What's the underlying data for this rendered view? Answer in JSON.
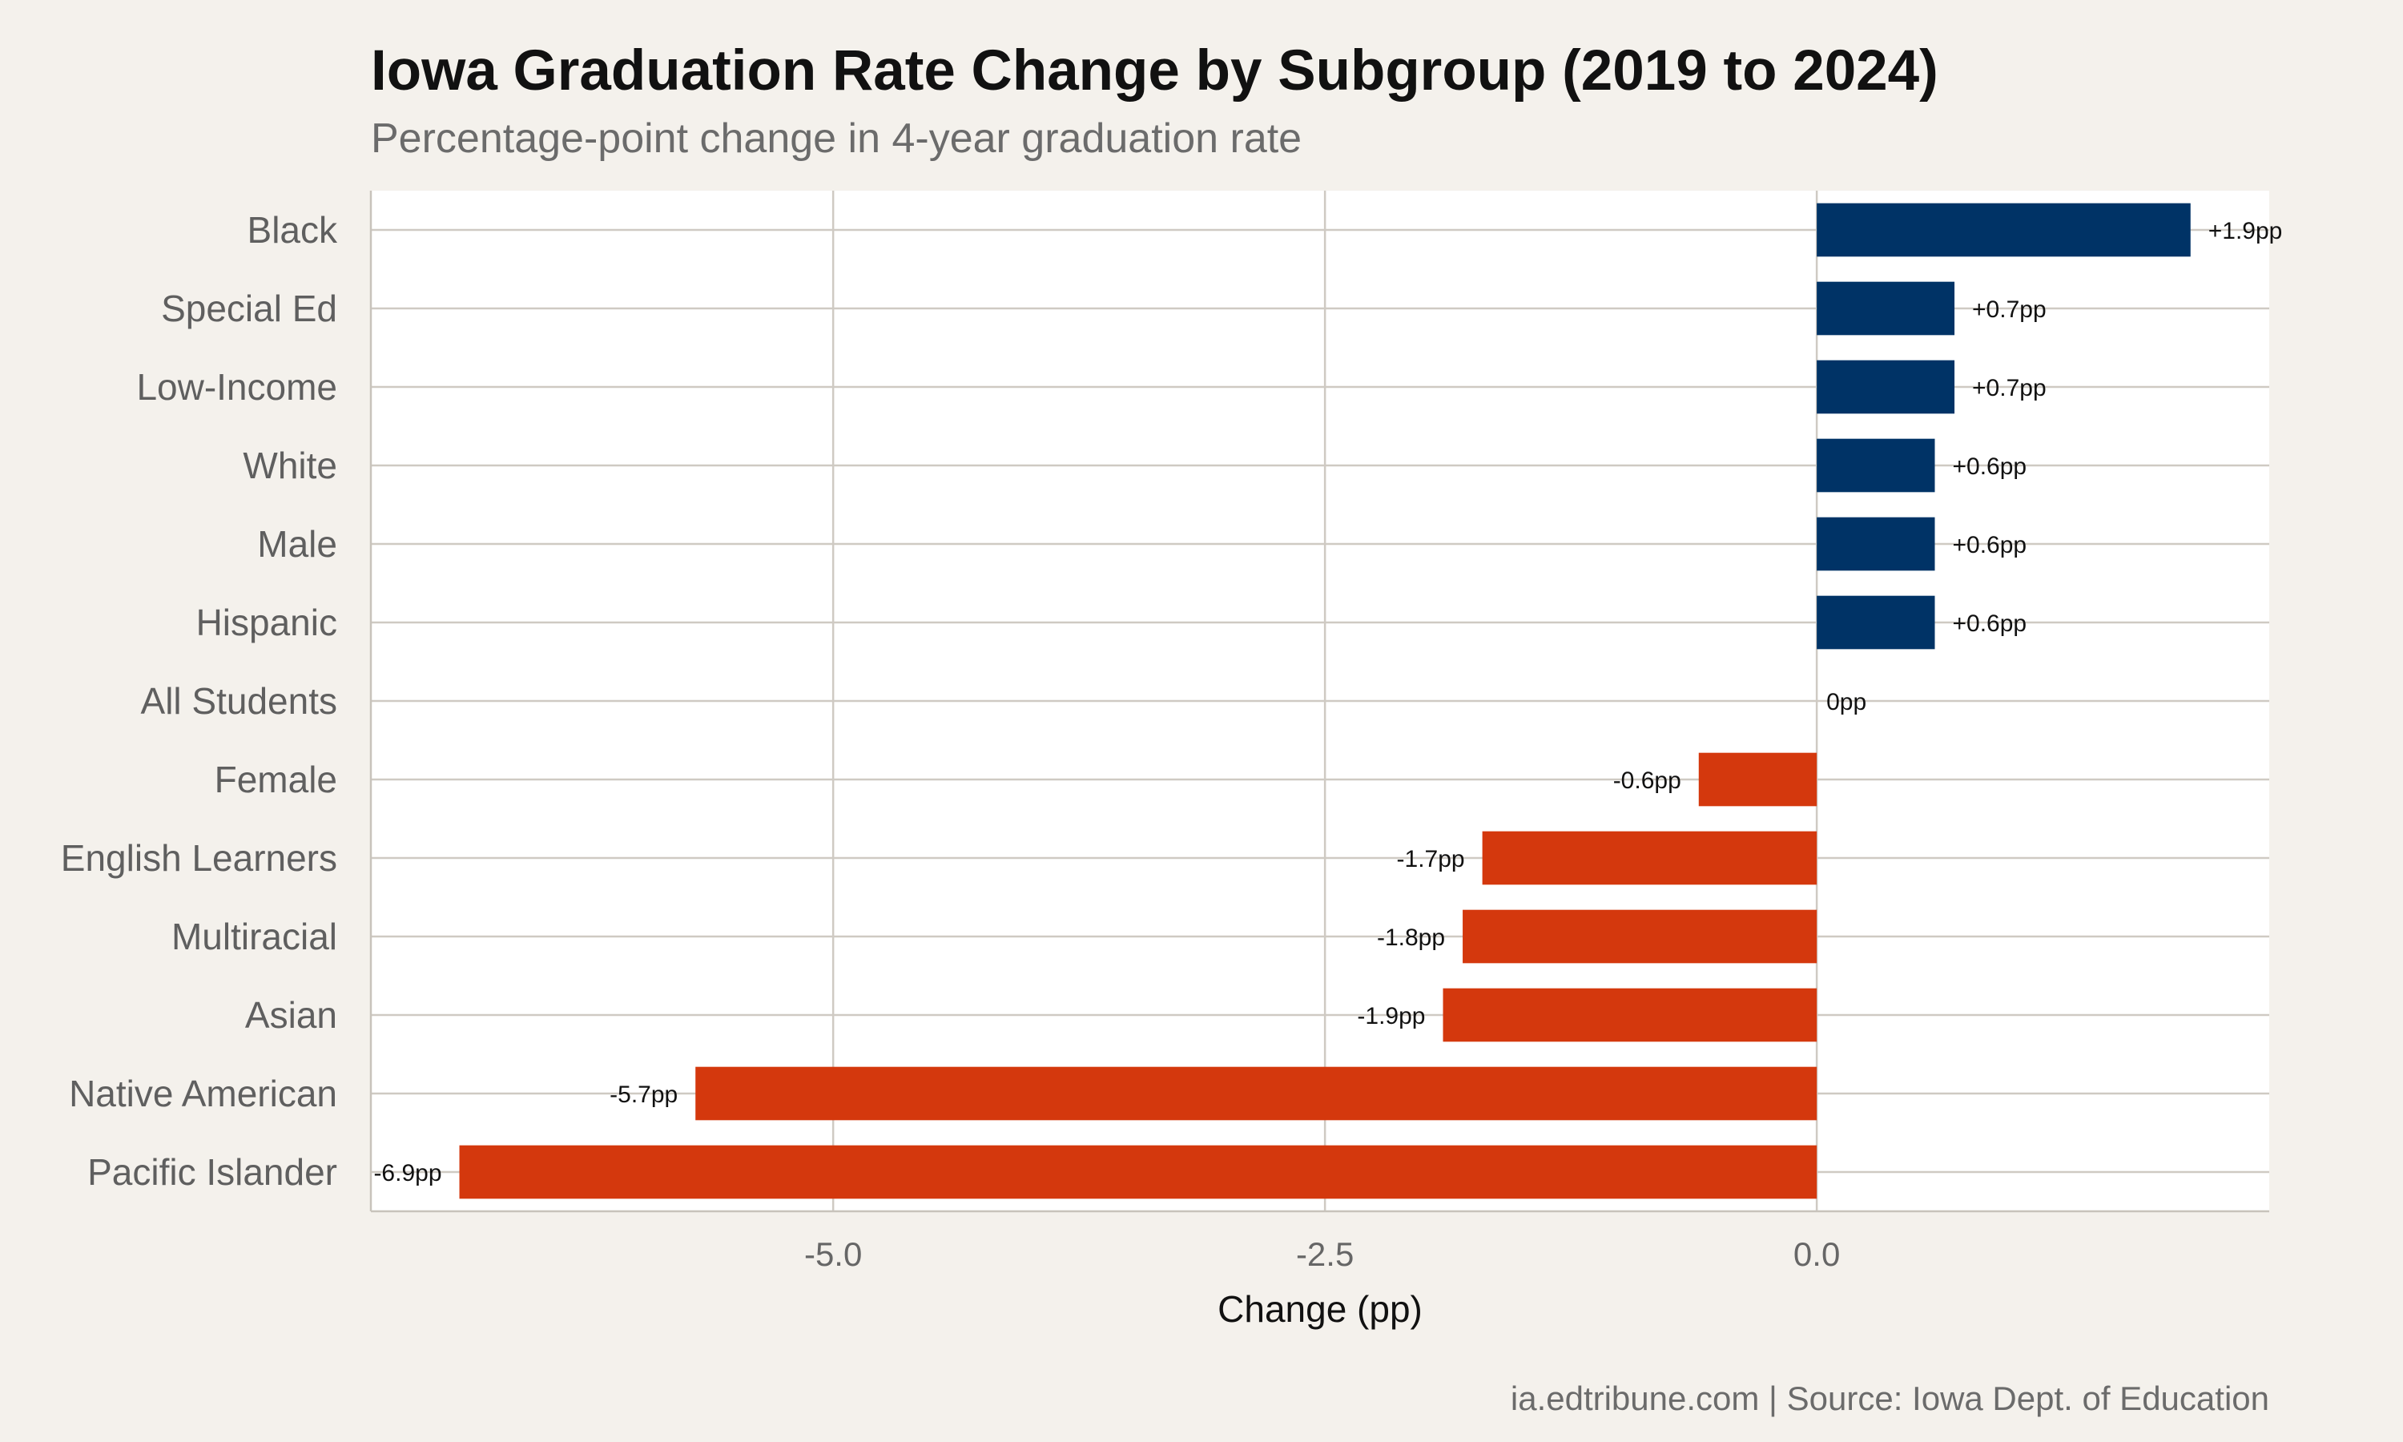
{
  "chart_data": {
    "type": "bar",
    "orientation": "horizontal",
    "title": "Iowa Graduation Rate Change by Subgroup (2019 to 2024)",
    "subtitle": "Percentage-point change in 4-year graduation rate",
    "xlabel": "Change (pp)",
    "ylabel": "",
    "caption": "ia.edtribune.com | Source: Iowa Dept. of Education",
    "categories": [
      "Black",
      "Special Ed",
      "Low-Income",
      "White",
      "Male",
      "Hispanic",
      "All Students",
      "Female",
      "English Learners",
      "Multiracial",
      "Asian",
      "Native American",
      "Pacific Islander"
    ],
    "values": [
      1.9,
      0.7,
      0.7,
      0.6,
      0.6,
      0.6,
      0,
      -0.6,
      -1.7,
      -1.8,
      -1.9,
      -5.7,
      -6.9
    ],
    "data_labels": [
      "+1.9pp",
      "+0.7pp",
      "+0.7pp",
      "+0.6pp",
      "+0.6pp",
      "+0.6pp",
      "0pp",
      "-0.6pp",
      "-1.7pp",
      "-1.8pp",
      "-1.9pp",
      "-5.7pp",
      "-6.9pp"
    ],
    "x_ticks": [
      -5.0,
      -2.5,
      0.0
    ],
    "x_tick_labels": [
      "-5.0",
      "-2.5",
      "0.0"
    ],
    "xlim": [
      -7.35,
      2.3
    ],
    "grid": true,
    "legend": "none",
    "colors": {
      "positive": "#003366",
      "negative": "#d4380d",
      "background": "#f4f1ec",
      "panel": "#ffffff",
      "grid": "#cfcac3"
    }
  }
}
